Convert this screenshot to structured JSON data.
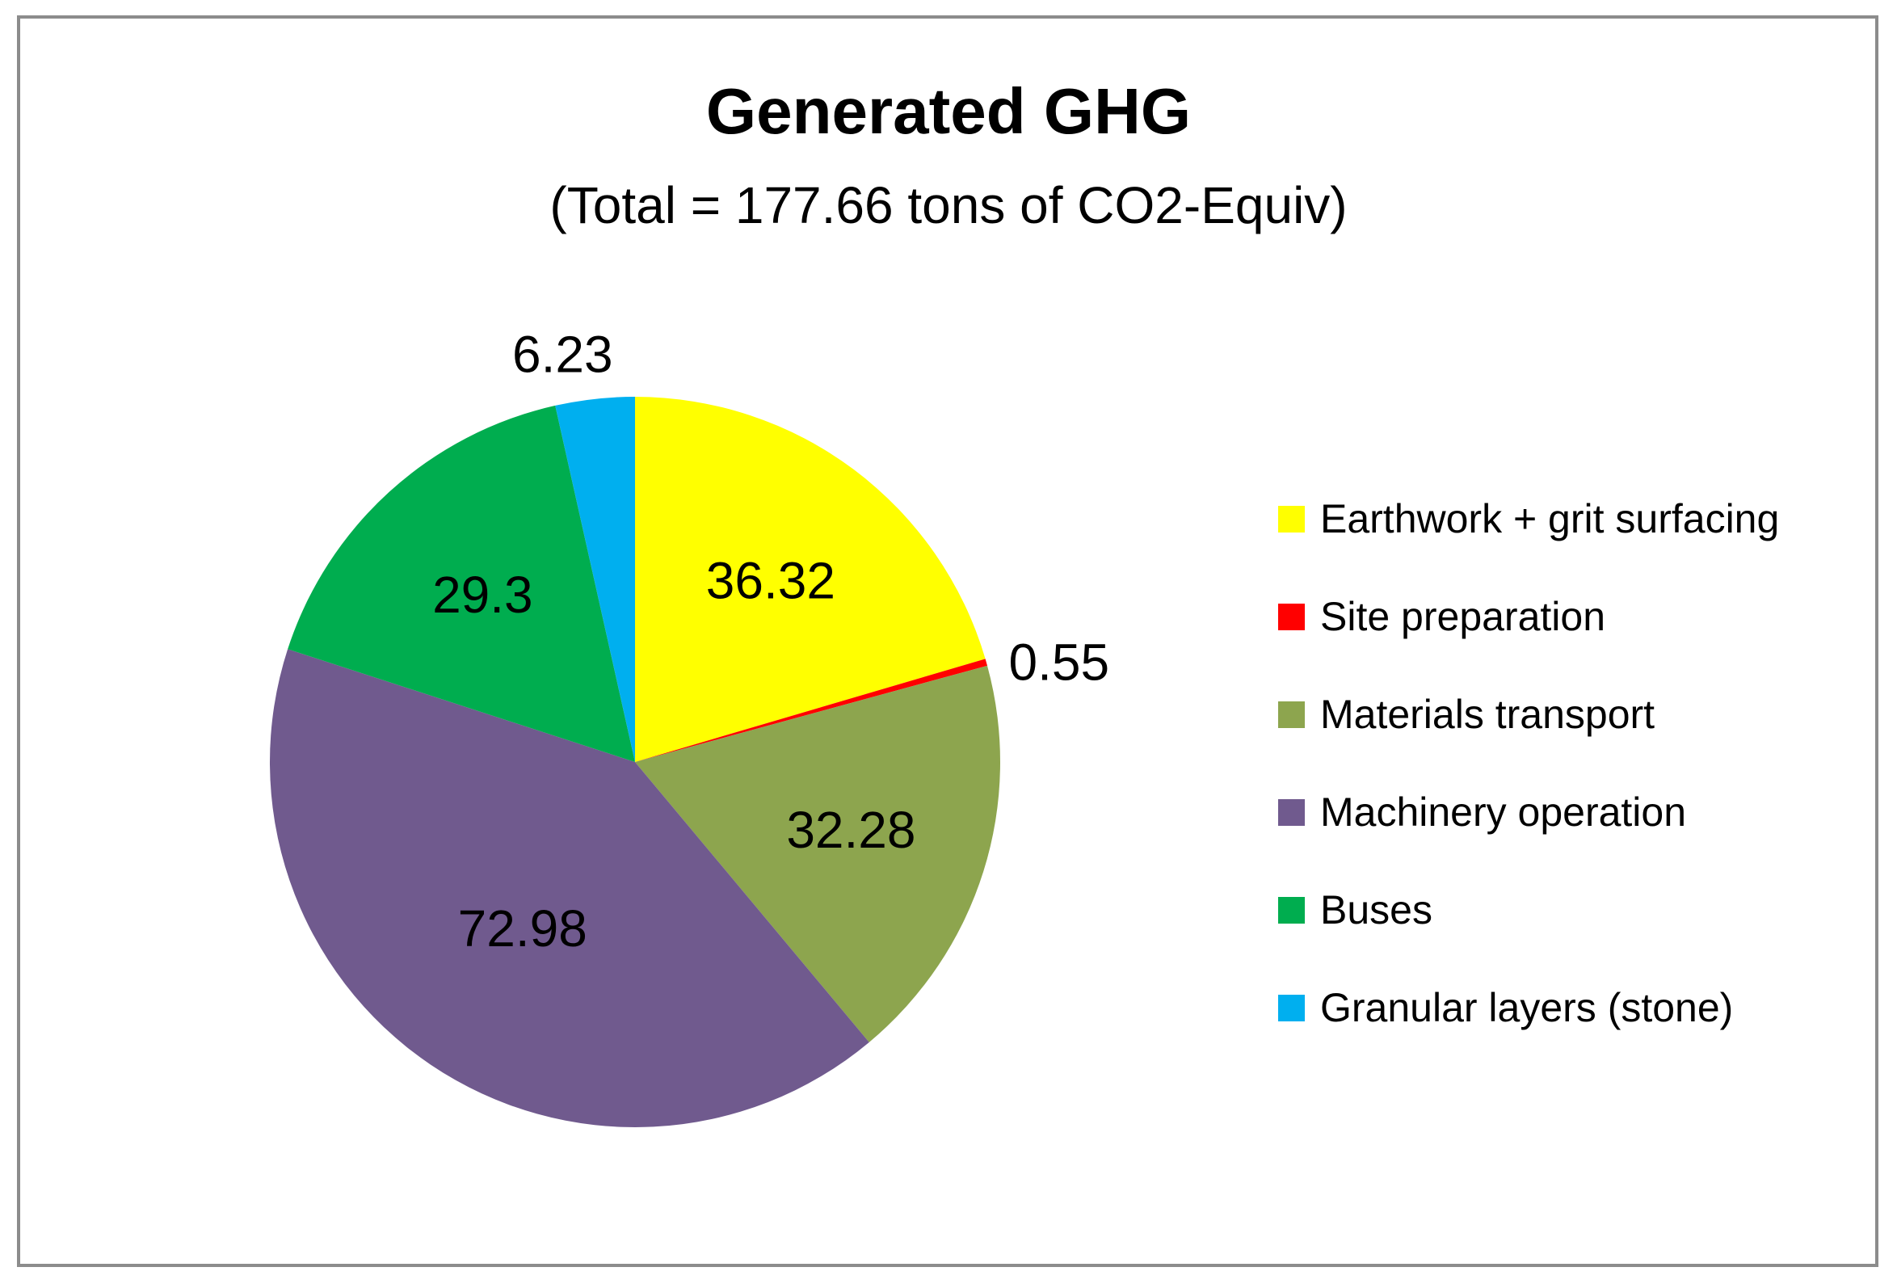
{
  "chart_data": {
    "type": "pie",
    "title": "Generated GHG",
    "subtitle": "(Total = 177.66 tons of CO2-Equiv)",
    "legend_position": "right",
    "categories": [
      "Earthwork + grit surfacing",
      "Site preparation",
      "Materials transport",
      "Machinery operation",
      "Buses",
      "Granular layers (stone)"
    ],
    "values": [
      36.32,
      0.55,
      32.28,
      72.98,
      29.3,
      6.23
    ],
    "value_labels": [
      "36.32",
      "0.55",
      "32.28",
      "72.98",
      "29.3",
      "6.23"
    ],
    "colors": [
      "#FFFF00",
      "#FF0000",
      "#8DA54E",
      "#705A8E",
      "#00AD4F",
      "#00AFEF"
    ]
  }
}
